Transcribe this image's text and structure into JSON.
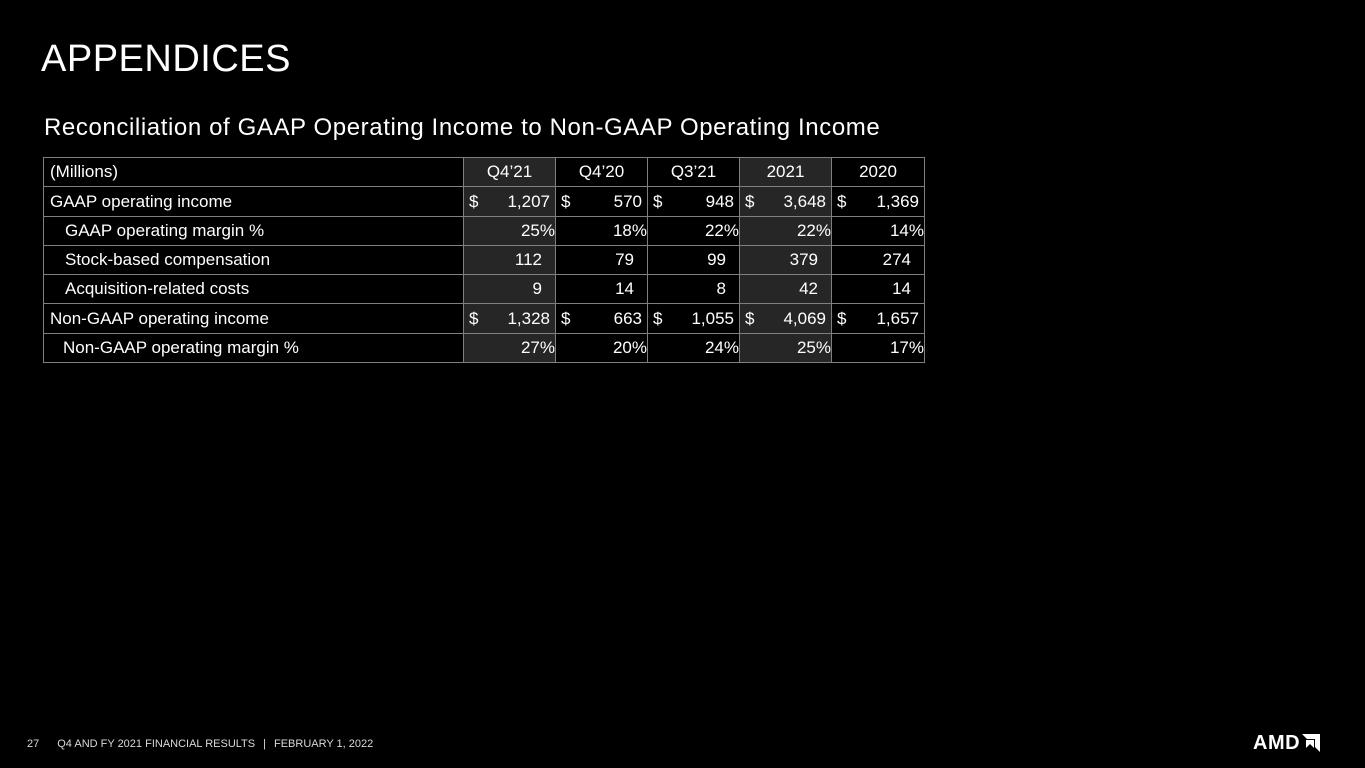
{
  "page": {
    "title": "APPENDICES",
    "subtitle": "Reconciliation of GAAP Operating Income to Non-GAAP Operating Income"
  },
  "table": {
    "header": {
      "label": "(Millions)",
      "columns": [
        "Q4’21",
        "Q4’20",
        "Q3’21",
        "2021",
        "2020"
      ]
    },
    "rows": [
      {
        "label": "GAAP operating income",
        "indent": 0,
        "dollar": true,
        "values": [
          "1,207",
          "570",
          "948",
          "3,648",
          "1,369"
        ]
      },
      {
        "label": "GAAP operating margin %",
        "indent": 1,
        "dollar": false,
        "values": [
          "25%",
          "18%",
          "22%",
          "22%",
          "14%"
        ]
      },
      {
        "label": "Stock-based compensation",
        "indent": 1,
        "dollar": false,
        "values": [
          "112",
          "79",
          "99",
          "379",
          "274"
        ]
      },
      {
        "label": "Acquisition-related costs",
        "indent": 1,
        "dollar": false,
        "values": [
          "9",
          "14",
          "8",
          "42",
          "14"
        ]
      },
      {
        "label": "Non-GAAP operating income",
        "indent": 0,
        "dollar": true,
        "values": [
          "1,328",
          "663",
          "1,055",
          "4,069",
          "1,657"
        ]
      },
      {
        "label": "Non-GAAP operating margin %",
        "indent": 2,
        "dollar": false,
        "values": [
          "27%",
          "20%",
          "24%",
          "25%",
          "17%"
        ]
      }
    ],
    "currency_symbol": "$"
  },
  "footer": {
    "page_number": "27",
    "report": "Q4 AND FY 2021 FINANCIAL RESULTS",
    "separator": "|",
    "date": "FEBRUARY 1, 2022"
  },
  "logo": {
    "text": "AMD",
    "icon": "amd-arrow-icon"
  },
  "colors": {
    "background": "#000000",
    "text": "#ffffff",
    "shaded_cell": "#262626",
    "border": "#7f7f7f"
  }
}
